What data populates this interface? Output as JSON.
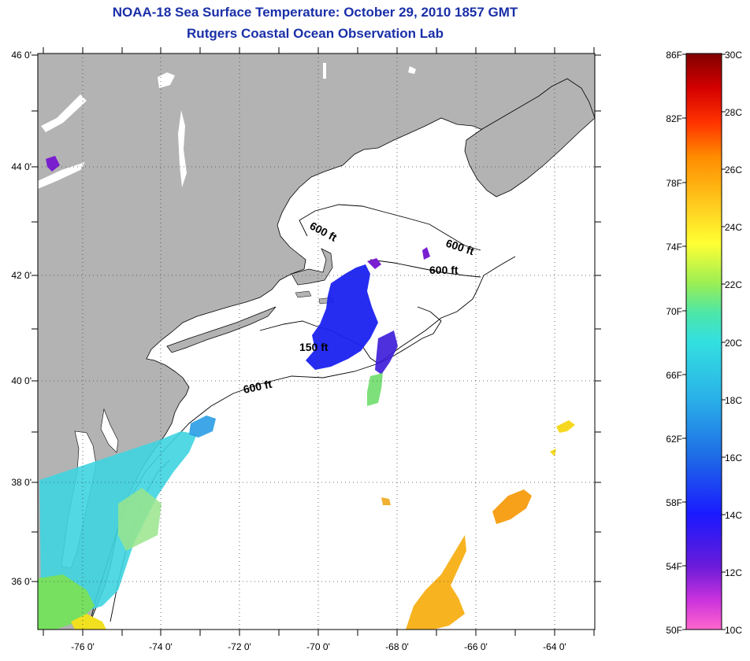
{
  "header": {
    "title": "NOAA-18 Sea Surface Temperature:  October 29, 2010 1857 GMT",
    "subtitle": "Rutgers Coastal Ocean Observation Lab"
  },
  "map": {
    "lat_labels": [
      "46 0'",
      "44 0'",
      "42 0'",
      "40 0'",
      "38 0'",
      "36 0'"
    ],
    "lon_labels": [
      "-76 0'",
      "-74 0'",
      "-72 0'",
      "-70 0'",
      "-68 0'",
      "-66 0'",
      "-64 0'"
    ],
    "contour_labels": [
      "600 ft",
      "600 ft",
      "600 ft",
      "150 ft",
      "600 ft"
    ],
    "colors": {
      "land": "#b3b3b3",
      "ocean": "#ffffff",
      "title": "#1a2fa8"
    }
  },
  "colorbar": {
    "fahrenheit_labels": [
      "86F",
      "82F",
      "78F",
      "74F",
      "70F",
      "66F",
      "62F",
      "58F",
      "54F",
      "50F"
    ],
    "celsius_labels": [
      "30C",
      "28C",
      "26C",
      "24C",
      "22C",
      "20C",
      "18C",
      "16C",
      "14C",
      "12C",
      "10C"
    ]
  }
}
